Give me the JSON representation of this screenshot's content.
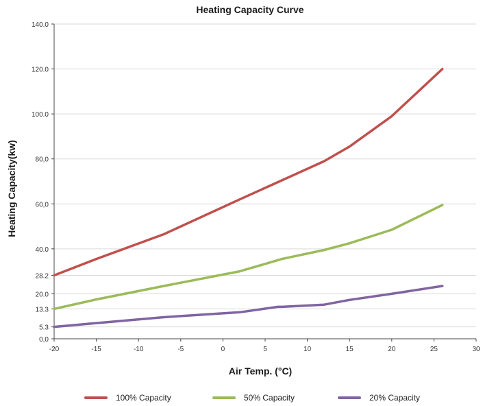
{
  "chart_data": {
    "type": "line",
    "title": "Heating Capacity Curve",
    "xlabel": "Air Temp. (°C)",
    "ylabel": "Heating Capacity(kw)",
    "xlim": [
      -20,
      30
    ],
    "ylim": [
      0,
      140
    ],
    "x_ticks": [
      "-20",
      "-15",
      "-10",
      "-5",
      "0",
      "5",
      "10",
      "15",
      "20",
      "25",
      "30"
    ],
    "y_ticks": [
      {
        "value": 0,
        "label": "0,0"
      },
      {
        "value": 5.3,
        "label": "5.3"
      },
      {
        "value": 13.3,
        "label": "13.3"
      },
      {
        "value": 20,
        "label": "20.0"
      },
      {
        "value": 28.2,
        "label": "28.2"
      },
      {
        "value": 40,
        "label": "40.0"
      },
      {
        "value": 60,
        "label": "60,0"
      },
      {
        "value": 80,
        "label": "80,0"
      },
      {
        "value": 100,
        "label": "100.0"
      },
      {
        "value": 120,
        "label": "120.0"
      },
      {
        "value": 140,
        "label": "140.0"
      }
    ],
    "grid": true,
    "legend_position": "bottom",
    "series": [
      {
        "name": "100% Capacity",
        "color": "#c0504d",
        "points": [
          [
            -20,
            28.2
          ],
          [
            -15,
            35.5
          ],
          [
            -7,
            46.5
          ],
          [
            2,
            62
          ],
          [
            7,
            70.5
          ],
          [
            12,
            79
          ],
          [
            15,
            85.5
          ],
          [
            20,
            99
          ],
          [
            26,
            120
          ]
        ]
      },
      {
        "name": "50% Capacity",
        "color": "#9bbb59",
        "points": [
          [
            -20,
            13.3
          ],
          [
            -15,
            17.5
          ],
          [
            -7,
            23.5
          ],
          [
            2,
            30
          ],
          [
            7,
            35.5
          ],
          [
            12,
            39.5
          ],
          [
            15,
            42.5
          ],
          [
            20,
            48.5
          ],
          [
            26,
            59.5
          ]
        ]
      },
      {
        "name": "20% Capacity",
        "color": "#8064a2",
        "points": [
          [
            -20,
            5.3
          ],
          [
            -15,
            7
          ],
          [
            -7,
            9.6
          ],
          [
            2,
            11.8
          ],
          [
            6.5,
            14.2
          ],
          [
            7,
            14.2
          ],
          [
            12,
            15.2
          ],
          [
            15,
            17.3
          ],
          [
            20,
            20
          ],
          [
            26,
            23.5
          ]
        ]
      }
    ]
  }
}
